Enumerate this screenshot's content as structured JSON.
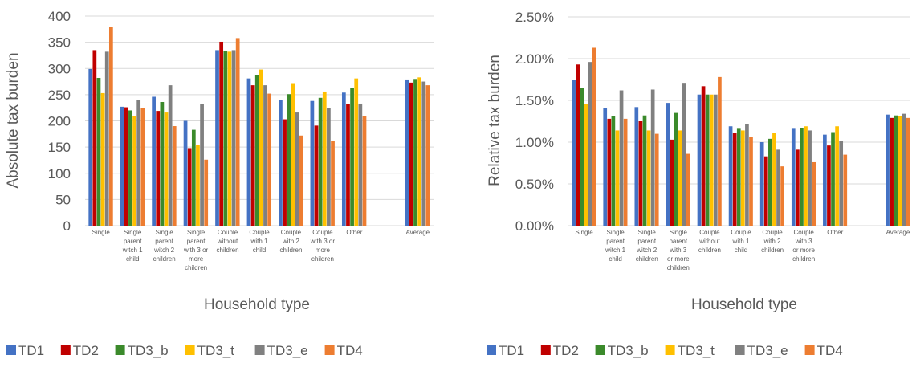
{
  "chart_data": [
    {
      "type": "bar",
      "xlabel": "Household type",
      "ylabel": "Absolute tax burden",
      "ylim": [
        0,
        400
      ],
      "yticks": [
        "0",
        "50",
        "100",
        "150",
        "200",
        "250",
        "300",
        "350",
        "400"
      ],
      "categories": [
        [
          "Single"
        ],
        [
          "Single",
          "parent",
          "witch 1",
          "child"
        ],
        [
          "Single",
          "parent",
          "witch 2",
          "children"
        ],
        [
          "Single",
          "parent",
          "with 3 or",
          "more",
          "children"
        ],
        [
          "Couple",
          "without",
          "children"
        ],
        [
          "Couple",
          "with 1",
          "child"
        ],
        [
          "Couple",
          "with 2",
          "children"
        ],
        [
          "Couple",
          "with 3 or",
          "more",
          "children"
        ],
        [
          "Other"
        ],
        [],
        [
          "Average"
        ]
      ],
      "series": [
        {
          "name": "TD1",
          "values": [
            299,
            227,
            246,
            200,
            335,
            281,
            240,
            238,
            254,
            null,
            279
          ]
        },
        {
          "name": "TD2",
          "values": [
            335,
            226,
            219,
            148,
            351,
            268,
            203,
            191,
            232,
            null,
            273
          ]
        },
        {
          "name": "TD3_b",
          "values": [
            282,
            220,
            236,
            183,
            333,
            287,
            251,
            244,
            263,
            null,
            280
          ]
        },
        {
          "name": "TD3_t",
          "values": [
            253,
            209,
            216,
            154,
            332,
            298,
            272,
            256,
            281,
            null,
            283
          ]
        },
        {
          "name": "TD3_e",
          "values": [
            332,
            240,
            268,
            232,
            335,
            268,
            216,
            224,
            233,
            null,
            275
          ]
        },
        {
          "name": "TD4",
          "values": [
            379,
            224,
            190,
            126,
            358,
            252,
            172,
            161,
            209,
            null,
            268
          ]
        }
      ],
      "grid": true,
      "legend": "bottom"
    },
    {
      "type": "bar",
      "xlabel": "Household type",
      "ylabel": "Relative tax burden",
      "ylim": [
        0,
        0.025
      ],
      "yticks": [
        "0.00%",
        "0.50%",
        "1.00%",
        "1.50%",
        "2.00%",
        "2.50%"
      ],
      "categories": [
        [
          "Single"
        ],
        [
          "Single",
          "parent",
          "witch 1",
          "child"
        ],
        [
          "Single",
          "parent",
          "witch 2",
          "children"
        ],
        [
          "Single",
          "parent",
          "with 3",
          "or more",
          "children"
        ],
        [
          "Couple",
          "without",
          "children"
        ],
        [
          "Couple",
          "with 1",
          "child"
        ],
        [
          "Couple",
          "with 2",
          "children"
        ],
        [
          "Couple",
          "with 3",
          "or more",
          "children"
        ],
        [
          "Other"
        ],
        [],
        [
          "Average"
        ]
      ],
      "series": [
        {
          "name": "TD1",
          "values": [
            0.0175,
            0.0141,
            0.0142,
            0.0147,
            0.0157,
            0.0119,
            0.01,
            0.0116,
            0.0109,
            null,
            0.0133
          ]
        },
        {
          "name": "TD2",
          "values": [
            0.0193,
            0.0128,
            0.0125,
            0.0103,
            0.0167,
            0.0111,
            0.0083,
            0.0091,
            0.0096,
            null,
            0.0129
          ]
        },
        {
          "name": "TD3_b",
          "values": [
            0.0165,
            0.0131,
            0.0132,
            0.0135,
            0.0157,
            0.0116,
            0.0104,
            0.0117,
            0.0112,
            null,
            0.0132
          ]
        },
        {
          "name": "TD3_t",
          "values": [
            0.0146,
            0.0114,
            0.0114,
            0.0114,
            0.0157,
            0.0114,
            0.0111,
            0.0119,
            0.0119,
            null,
            0.0131
          ]
        },
        {
          "name": "TD3_e",
          "values": [
            0.0196,
            0.0162,
            0.0163,
            0.0171,
            0.0157,
            0.0122,
            0.0091,
            0.0114,
            0.0101,
            null,
            0.0134
          ]
        },
        {
          "name": "TD4",
          "values": [
            0.0213,
            0.0128,
            0.011,
            0.0086,
            0.0178,
            0.0106,
            0.0071,
            0.0076,
            0.0085,
            null,
            0.0129
          ]
        }
      ],
      "grid": true,
      "legend": "bottom"
    }
  ],
  "colors": {
    "TD1": "#4472c4",
    "TD2": "#c00000",
    "TD3_b": "#3b8a2b",
    "TD3_t": "#ffc000",
    "TD3_e": "#808080",
    "TD4": "#ed7d31",
    "grid": "#d9d9d9",
    "text": "#595959"
  }
}
